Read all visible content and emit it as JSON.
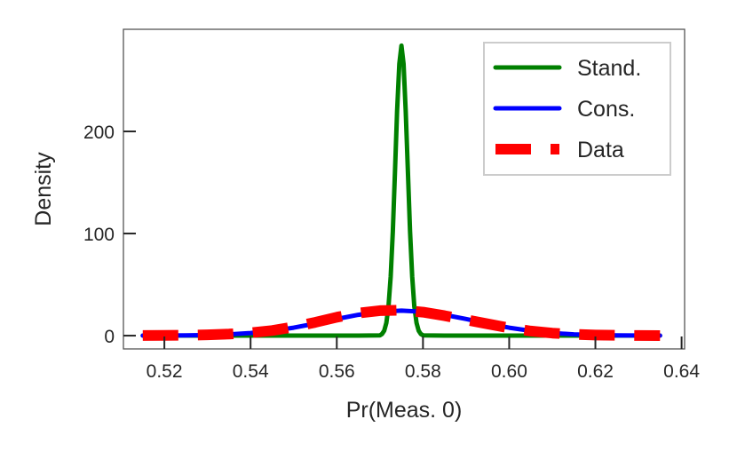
{
  "chart_data": {
    "type": "line",
    "title": "",
    "xlabel": "Pr(Meas. 0)",
    "ylabel": "Density",
    "xlim": [
      0.5105,
      0.6407
    ],
    "ylim": [
      -13,
      300
    ],
    "xticks": [
      0.52,
      0.54,
      0.56,
      0.58,
      0.6,
      0.62,
      0.64
    ],
    "xtick_labels": [
      "0.52",
      "0.54",
      "0.56",
      "0.58",
      "0.60",
      "0.62",
      "0.64"
    ],
    "yticks": [
      0,
      100,
      200
    ],
    "ytick_labels": [
      "0",
      "100",
      "200"
    ],
    "grid": false,
    "legend_placement": "top-right",
    "series": [
      {
        "name": "Stand.",
        "color": "#008000",
        "style": "solid",
        "x": [
          0.515,
          0.565,
          0.57,
          0.5705,
          0.571,
          0.5715,
          0.572,
          0.5725,
          0.573,
          0.5735,
          0.574,
          0.5745,
          0.575,
          0.5755,
          0.576,
          0.5765,
          0.577,
          0.5775,
          0.578,
          0.5785,
          0.579,
          0.5795,
          0.58,
          0.585,
          0.635
        ],
        "y": [
          0,
          0,
          0.3,
          1.6,
          4.8,
          12.5,
          28.5,
          58,
          102,
          160,
          220,
          266,
          284,
          266,
          220,
          160,
          102,
          58,
          28.5,
          12.5,
          4.8,
          1.6,
          0.3,
          0,
          0
        ]
      },
      {
        "name": "Cons.",
        "color": "#0000ff",
        "style": "solid",
        "x": [
          0.515,
          0.52,
          0.525,
          0.53,
          0.535,
          0.54,
          0.545,
          0.55,
          0.555,
          0.56,
          0.565,
          0.57,
          0.575,
          0.58,
          0.585,
          0.59,
          0.595,
          0.6,
          0.605,
          0.61,
          0.615,
          0.62,
          0.625,
          0.63,
          0.635
        ],
        "y": [
          0.03,
          0.1,
          0.25,
          0.6,
          1.3,
          2.6,
          4.7,
          7.8,
          11.8,
          16.3,
          20.4,
          23.4,
          24.5,
          23.4,
          20.4,
          16.3,
          11.8,
          7.8,
          4.7,
          2.6,
          1.3,
          0.6,
          0.25,
          0.1,
          0.03
        ]
      },
      {
        "name": "Data",
        "color": "#ff0000",
        "style": "dashed",
        "x": [
          0.515,
          0.52,
          0.525,
          0.53,
          0.535,
          0.54,
          0.545,
          0.55,
          0.555,
          0.56,
          0.565,
          0.57,
          0.575,
          0.58,
          0.585,
          0.59,
          0.595,
          0.6,
          0.605,
          0.61,
          0.615,
          0.62,
          0.625,
          0.63,
          0.635
        ],
        "y": [
          0.1,
          0.2,
          0.4,
          0.8,
          1.5,
          2.8,
          5.0,
          8.5,
          13.0,
          18.0,
          22.0,
          24.5,
          25.0,
          23.0,
          19.5,
          15.5,
          11.5,
          7.5,
          4.5,
          2.5,
          1.3,
          0.6,
          0.3,
          0.1,
          0.05
        ]
      }
    ]
  }
}
